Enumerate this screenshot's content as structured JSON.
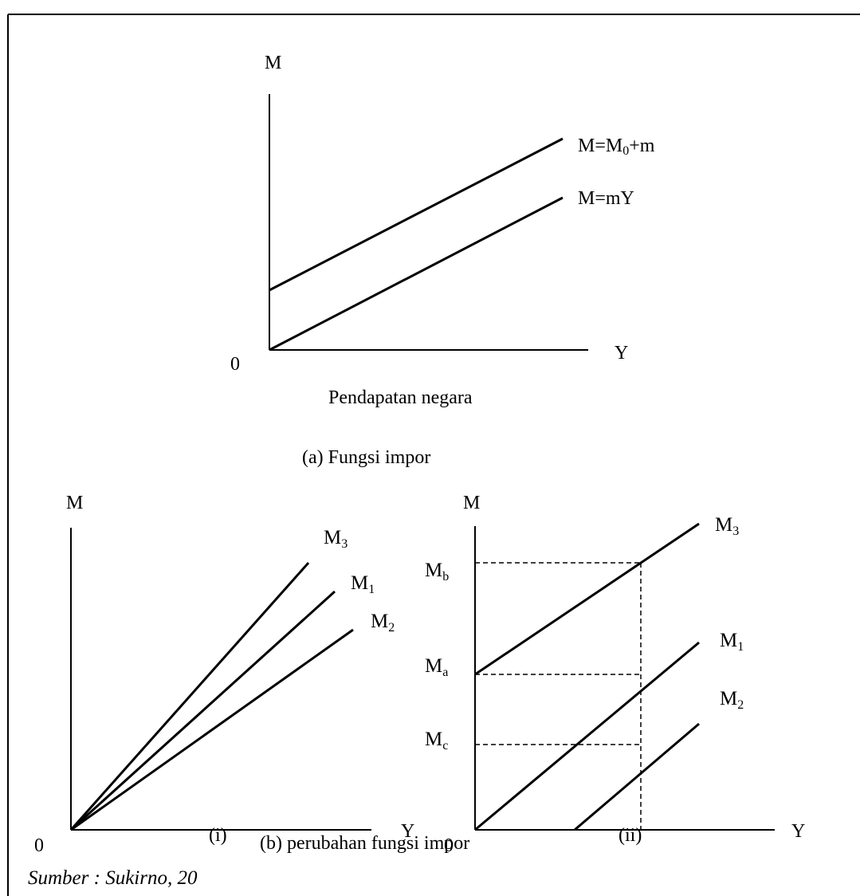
{
  "panel_a": {
    "axis_y_label": "M",
    "axis_x_label": "Y",
    "origin_label": "0",
    "line_upper_label_main": "M=M",
    "line_upper_label_sub": "0",
    "line_upper_label_tail": "+m",
    "line_lower_label": "M=mY",
    "xlabel": "Pendapatan negara",
    "caption": "(a) Fungsi impor"
  },
  "panel_b_i": {
    "axis_y_label": "M",
    "axis_x_label": "Y",
    "origin_label": "0",
    "lines": [
      {
        "main": "M",
        "sub": "3"
      },
      {
        "main": "M",
        "sub": "1"
      },
      {
        "main": "M",
        "sub": "2"
      }
    ],
    "caption": "(i)"
  },
  "panel_b_ii": {
    "axis_y_label": "M",
    "axis_x_label": "Y",
    "origin_label": "0",
    "lines": [
      {
        "main": "M",
        "sub": "3"
      },
      {
        "main": "M",
        "sub": "1"
      },
      {
        "main": "M",
        "sub": "2"
      }
    ],
    "tick_labels": [
      {
        "main": "M",
        "sub": "b"
      },
      {
        "main": "M",
        "sub": "a"
      },
      {
        "main": "M",
        "sub": "c"
      }
    ],
    "caption": "(ii)"
  },
  "caption_b": "(b) perubahan fungsi impor",
  "source": "Sumber : Sukirno, 20"
}
